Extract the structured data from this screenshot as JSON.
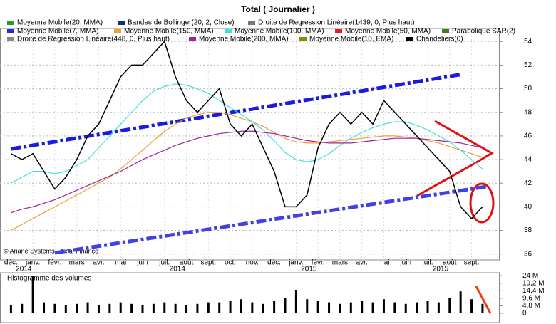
{
  "chart_data": {
    "type": "line",
    "title": "Total  ( Journalier )",
    "copyright": "© Ariane Systems - Axial Finance",
    "xticks": [
      {
        "value": 0,
        "label": "déc."
      },
      {
        "value": 2,
        "label": "janv."
      },
      {
        "value": 4,
        "label": "févr."
      },
      {
        "value": 6,
        "label": "mars"
      },
      {
        "value": 8,
        "label": "avr."
      },
      {
        "value": 10,
        "label": "mai"
      },
      {
        "value": 12,
        "label": "juin"
      },
      {
        "value": 14,
        "label": "juil."
      },
      {
        "value": 16,
        "label": "août"
      },
      {
        "value": 18,
        "label": "sept."
      },
      {
        "value": 20,
        "label": "oct."
      },
      {
        "value": 22,
        "label": "nov."
      },
      {
        "value": 24,
        "label": "déc."
      },
      {
        "value": 26,
        "label": "janv."
      },
      {
        "value": 28,
        "label": "févr."
      },
      {
        "value": 30,
        "label": "mars"
      },
      {
        "value": 32,
        "label": "avr."
      },
      {
        "value": 34,
        "label": "mai"
      },
      {
        "value": 36,
        "label": "juin"
      },
      {
        "value": 38,
        "label": "juil."
      },
      {
        "value": 40,
        "label": "août"
      },
      {
        "value": 42,
        "label": "sept."
      }
    ],
    "year_ticks": [
      {
        "value": 0,
        "label": "2014"
      },
      {
        "value": 14,
        "label": "2014"
      },
      {
        "value": 26,
        "label": "2015"
      },
      {
        "value": 38,
        "label": "2015"
      }
    ],
    "xlim": [
      -1,
      44.5
    ],
    "ylim": [
      35.5,
      55.1
    ],
    "yticks": [
      36,
      38,
      40,
      42,
      44,
      46,
      48,
      50,
      52,
      54
    ],
    "grid": true,
    "series": [
      {
        "name": "Moyenne Mobile(20, MMA)",
        "color": "#22a022"
      },
      {
        "name": "Bandes de Bollinger(20, 2, Close)",
        "color": "#1a2a7a"
      },
      {
        "name": "Droite de Regression Linéaire(1439, 0, Plus haut)",
        "color": "#777777"
      },
      {
        "name": "Moyenne Mobile(7, MMA)",
        "color": "#2030d0"
      },
      {
        "name": "Moyenne Mobile(150, MMA)",
        "color": "#f0a030",
        "values": [
          38,
          38.5,
          39,
          39.5,
          40,
          40.5,
          41,
          41.5,
          42,
          42.5,
          43.2,
          44,
          44.8,
          45.6,
          46.4,
          47,
          47.5,
          47.8,
          48,
          48,
          47.8,
          47.5,
          47.2,
          46.8,
          46.3,
          45.8,
          45.5,
          45.4,
          45.4,
          45.5,
          45.6,
          45.7,
          45.8,
          45.9,
          46,
          46,
          45.9,
          45.8,
          45.6,
          45.4,
          45.1,
          44.8,
          44.5,
          44.2
        ]
      },
      {
        "name": "Moyenne Mobile(100, MMA)",
        "color": "#40e0e0",
        "values": [
          42,
          42.5,
          43,
          43,
          42.8,
          43,
          43.5,
          44,
          45,
          46,
          47,
          48,
          49,
          49.8,
          50.2,
          50.4,
          50.3,
          50,
          49.6,
          49,
          48.4,
          47.8,
          47.2,
          46.5,
          45.6,
          44.6,
          44,
          43.8,
          44,
          44.5,
          45.2,
          45.8,
          46.3,
          46.7,
          47,
          47.2,
          47.2,
          46.9,
          46.5,
          46,
          45.5,
          44.8,
          44,
          43.2
        ]
      },
      {
        "name": "Moyenne Mobile(50, MMA)",
        "color": "#e02020"
      },
      {
        "name": "Parabolique SAR(2)",
        "color": "#4a7a20"
      },
      {
        "name": "Droite de Regression Linéaire(448, 0, Plus haut)",
        "color": "#888888"
      },
      {
        "name": "Moyenne Mobile(200, MMA)",
        "color": "#a020a0",
        "values": [
          39.5,
          39.8,
          40,
          40.3,
          40.6,
          41,
          41.4,
          41.8,
          42.2,
          42.6,
          43,
          43.5,
          44,
          44.4,
          44.8,
          45.2,
          45.5,
          45.8,
          46,
          46.2,
          46.3,
          46.4,
          46.4,
          46.3,
          46.2,
          46,
          45.8,
          45.6,
          45.5,
          45.4,
          45.4,
          45.4,
          45.5,
          45.6,
          45.7,
          45.8,
          45.8,
          45.8,
          45.7,
          45.6,
          45.5,
          45.4,
          45.2,
          45
        ]
      },
      {
        "name": "Moyenne Mobile(10, EMA)",
        "color": "#8a8a00"
      },
      {
        "name": "Chandeliers(0)",
        "color": "#000000",
        "values": [
          44.5,
          44,
          44.5,
          43,
          41.5,
          42.5,
          44,
          46,
          47,
          49,
          51,
          52,
          52,
          53,
          54,
          51,
          49,
          48,
          49,
          50,
          47,
          46,
          47,
          45,
          43,
          40,
          40,
          41,
          45,
          47,
          48,
          47,
          48,
          47,
          49,
          48,
          47,
          46,
          45,
          44,
          43,
          40,
          39,
          40
        ]
      }
    ],
    "trendlines": [
      {
        "color": "#1a1ae0",
        "x": [
          0,
          41
        ],
        "values": [
          44.9,
          51.2
        ]
      },
      {
        "color": "#4040e8",
        "x": [
          4,
          43.3
        ],
        "values": [
          36.1,
          41.7
        ]
      }
    ],
    "volume": {
      "title": "Histogramme des volumes",
      "color": "#000000",
      "values": [
        5,
        6,
        24,
        7,
        6,
        5,
        6,
        7,
        5,
        6,
        7,
        6,
        5,
        6,
        7,
        6,
        5,
        6,
        7,
        7,
        8,
        9,
        7,
        6,
        8,
        10,
        15,
        9,
        8,
        7,
        6,
        7,
        8,
        7,
        9,
        7,
        6,
        7,
        8,
        7,
        10,
        14,
        9,
        6
      ],
      "ylim": [
        0,
        25
      ],
      "yticks": [
        0,
        {
          "value": 4.8,
          "label": "4,8 M"
        },
        {
          "value": 9.6,
          "label": "9,6 M"
        },
        {
          "value": 14.4,
          "label": "14,4 M"
        },
        {
          "value": 19.2,
          "label": "19,2 M"
        },
        {
          "value": 24,
          "label": "24 M"
        }
      ]
    }
  }
}
